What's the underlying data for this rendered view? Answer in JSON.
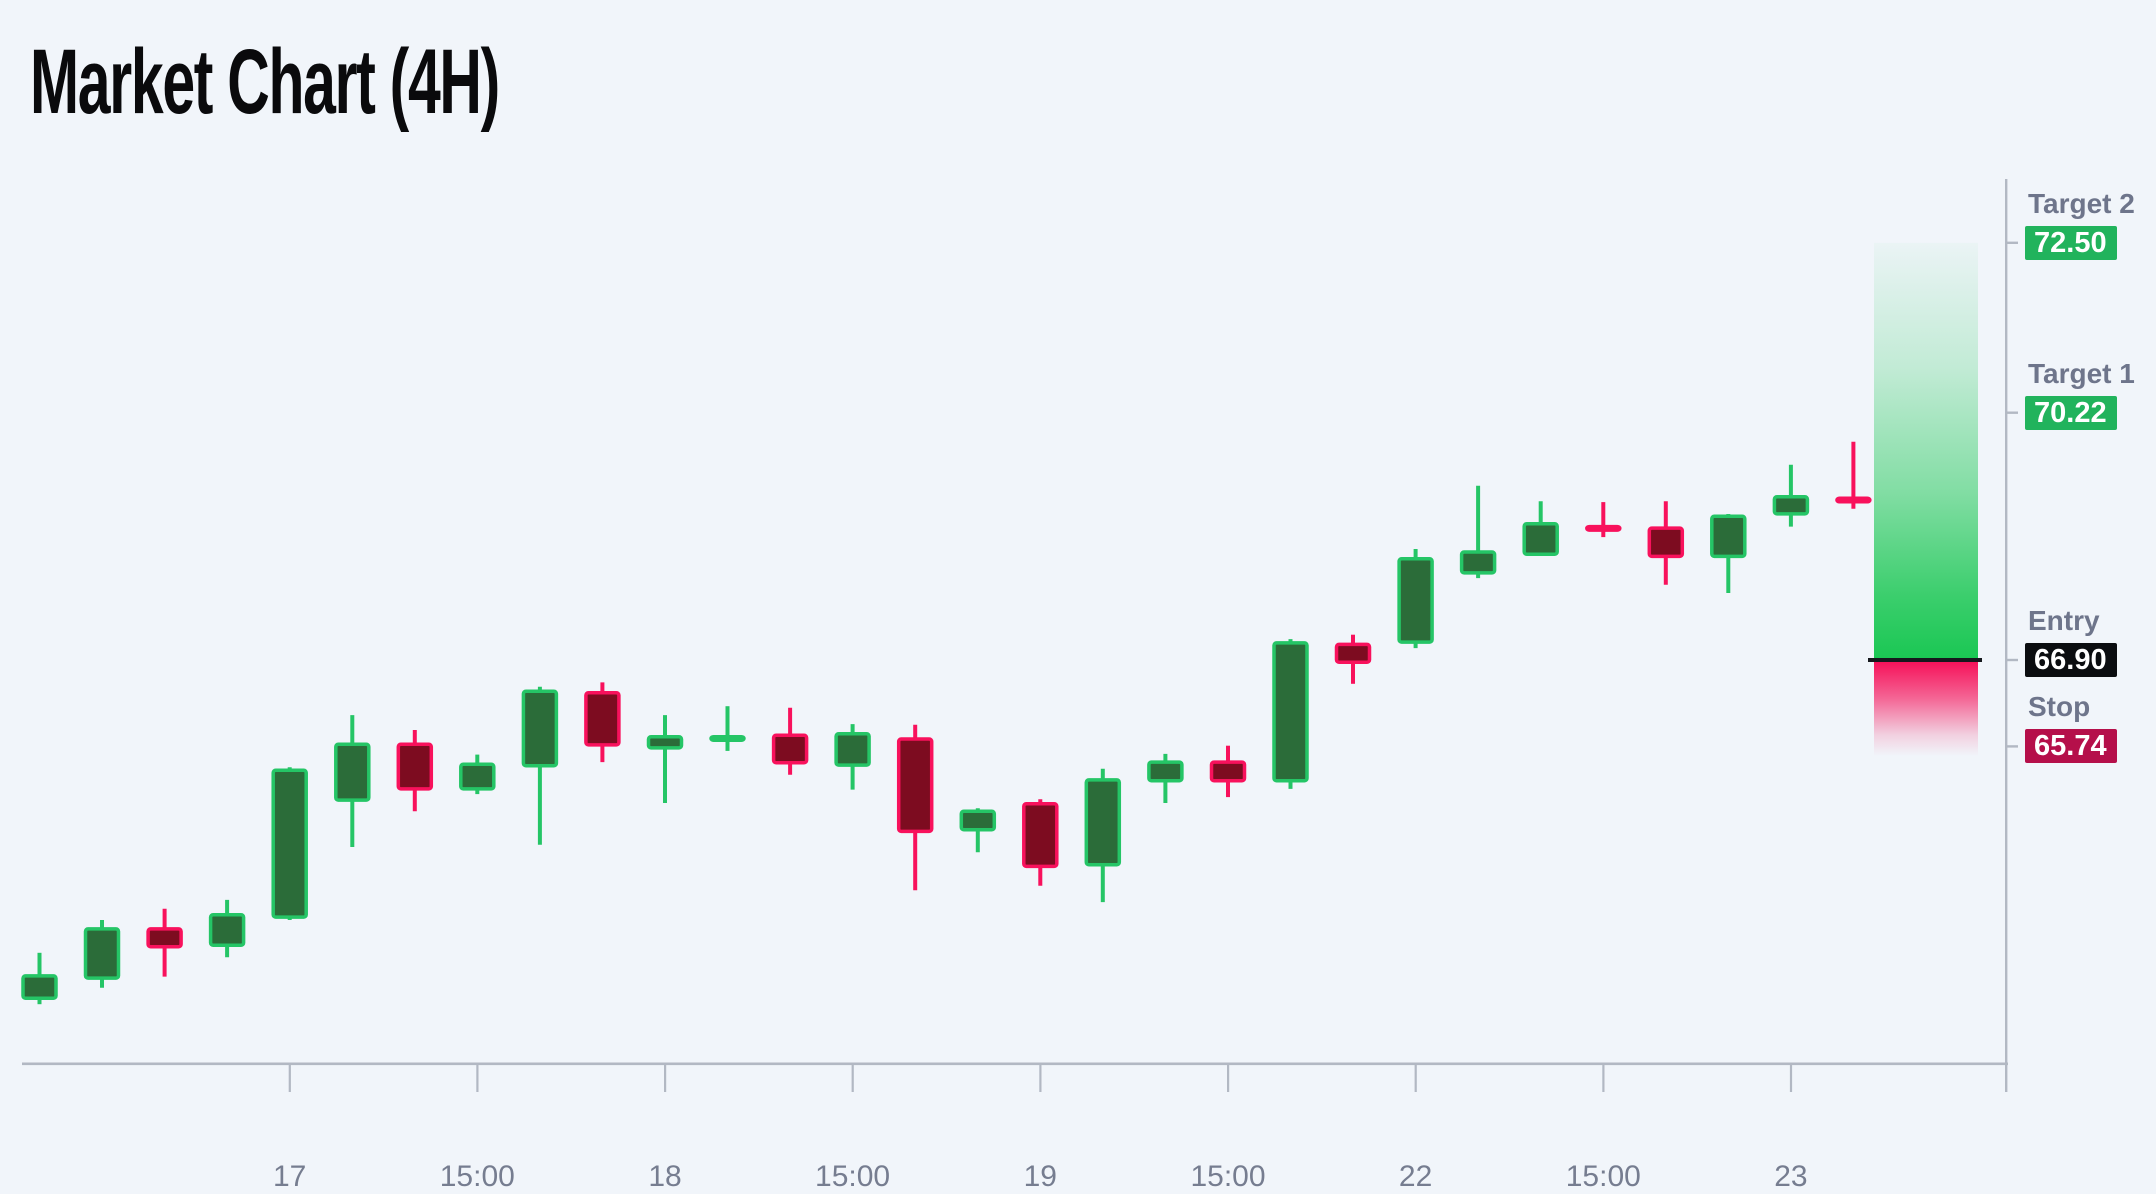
{
  "chart_data": {
    "type": "candlestick",
    "title": "Market Chart (4H)",
    "interval": "4H",
    "x_tick_labels": [
      "17",
      "15:00",
      "18",
      "15:00",
      "19",
      "15:00",
      "22",
      "15:00",
      "23"
    ],
    "x_tick_candle_indices": [
      4,
      7,
      10,
      13,
      16,
      19,
      22,
      25,
      28
    ],
    "y_axis_visible_range": [
      61.4,
      73.4
    ],
    "grid": "off",
    "candles": [
      {
        "o": 62.36,
        "h": 62.97,
        "l": 62.28,
        "c": 62.66
      },
      {
        "o": 62.63,
        "h": 63.41,
        "l": 62.5,
        "c": 63.29
      },
      {
        "o": 63.29,
        "h": 63.56,
        "l": 62.65,
        "c": 63.05
      },
      {
        "o": 63.07,
        "h": 63.68,
        "l": 62.91,
        "c": 63.48
      },
      {
        "o": 63.45,
        "h": 65.46,
        "l": 63.41,
        "c": 65.42
      },
      {
        "o": 65.02,
        "h": 66.16,
        "l": 64.39,
        "c": 65.77
      },
      {
        "o": 65.77,
        "h": 65.96,
        "l": 64.87,
        "c": 65.17
      },
      {
        "o": 65.17,
        "h": 65.63,
        "l": 65.1,
        "c": 65.5
      },
      {
        "o": 65.48,
        "h": 66.54,
        "l": 64.42,
        "c": 66.48
      },
      {
        "o": 66.46,
        "h": 66.6,
        "l": 65.53,
        "c": 65.76
      },
      {
        "o": 65.72,
        "h": 66.16,
        "l": 64.98,
        "c": 65.87
      },
      {
        "o": 65.83,
        "h": 66.28,
        "l": 65.68,
        "c": 65.87
      },
      {
        "o": 65.89,
        "h": 66.26,
        "l": 65.36,
        "c": 65.52
      },
      {
        "o": 65.49,
        "h": 66.04,
        "l": 65.16,
        "c": 65.91
      },
      {
        "o": 65.84,
        "h": 66.03,
        "l": 63.81,
        "c": 64.6
      },
      {
        "o": 64.62,
        "h": 64.91,
        "l": 64.32,
        "c": 64.87
      },
      {
        "o": 64.97,
        "h": 65.03,
        "l": 63.87,
        "c": 64.13
      },
      {
        "o": 64.15,
        "h": 65.44,
        "l": 63.65,
        "c": 65.29
      },
      {
        "o": 65.28,
        "h": 65.64,
        "l": 64.98,
        "c": 65.53
      },
      {
        "o": 65.53,
        "h": 65.75,
        "l": 65.06,
        "c": 65.28
      },
      {
        "o": 65.28,
        "h": 67.18,
        "l": 65.17,
        "c": 67.13
      },
      {
        "o": 67.11,
        "h": 67.24,
        "l": 66.58,
        "c": 66.87
      },
      {
        "o": 67.14,
        "h": 68.39,
        "l": 67.06,
        "c": 68.26
      },
      {
        "o": 68.07,
        "h": 69.24,
        "l": 68.0,
        "c": 68.35
      },
      {
        "o": 68.32,
        "h": 69.03,
        "l": 68.3,
        "c": 68.73
      },
      {
        "o": 68.69,
        "h": 69.02,
        "l": 68.55,
        "c": 68.66
      },
      {
        "o": 68.67,
        "h": 69.03,
        "l": 67.91,
        "c": 68.29
      },
      {
        "o": 68.29,
        "h": 68.86,
        "l": 67.8,
        "c": 68.83
      },
      {
        "o": 68.86,
        "h": 69.52,
        "l": 68.69,
        "c": 69.09
      },
      {
        "o": 69.07,
        "h": 69.83,
        "l": 68.93,
        "c": 69.04
      }
    ],
    "levels": [
      {
        "label": "Target 2",
        "value": "72.50",
        "price": 72.5,
        "badge_color": "#21b35c"
      },
      {
        "label": "Target 1",
        "value": "70.22",
        "price": 70.22,
        "badge_color": "#21b35c"
      },
      {
        "label": "Entry",
        "value": "66.90",
        "price": 66.9,
        "badge_color": "#0b0d10"
      },
      {
        "label": "Stop",
        "value": "65.74",
        "price": 65.74,
        "badge_color": "#b50f4a"
      }
    ],
    "zone": {
      "reward_from": 66.9,
      "reward_to": 72.5,
      "risk_from": 66.9,
      "risk_to": 65.74
    },
    "colors": {
      "background": "#f1f5fa",
      "bull_border": "#25c566",
      "bull_fill": "#2b6c39",
      "bear_border": "#f8115c",
      "bear_fill": "#7d0c20",
      "axis": "#b2b8c3",
      "tick_label": "#767d90",
      "level_label": "#6e758b",
      "reward_solid": "#1ac753",
      "risk_solid": "#f60e57",
      "entry_line": "#16181d"
    }
  }
}
